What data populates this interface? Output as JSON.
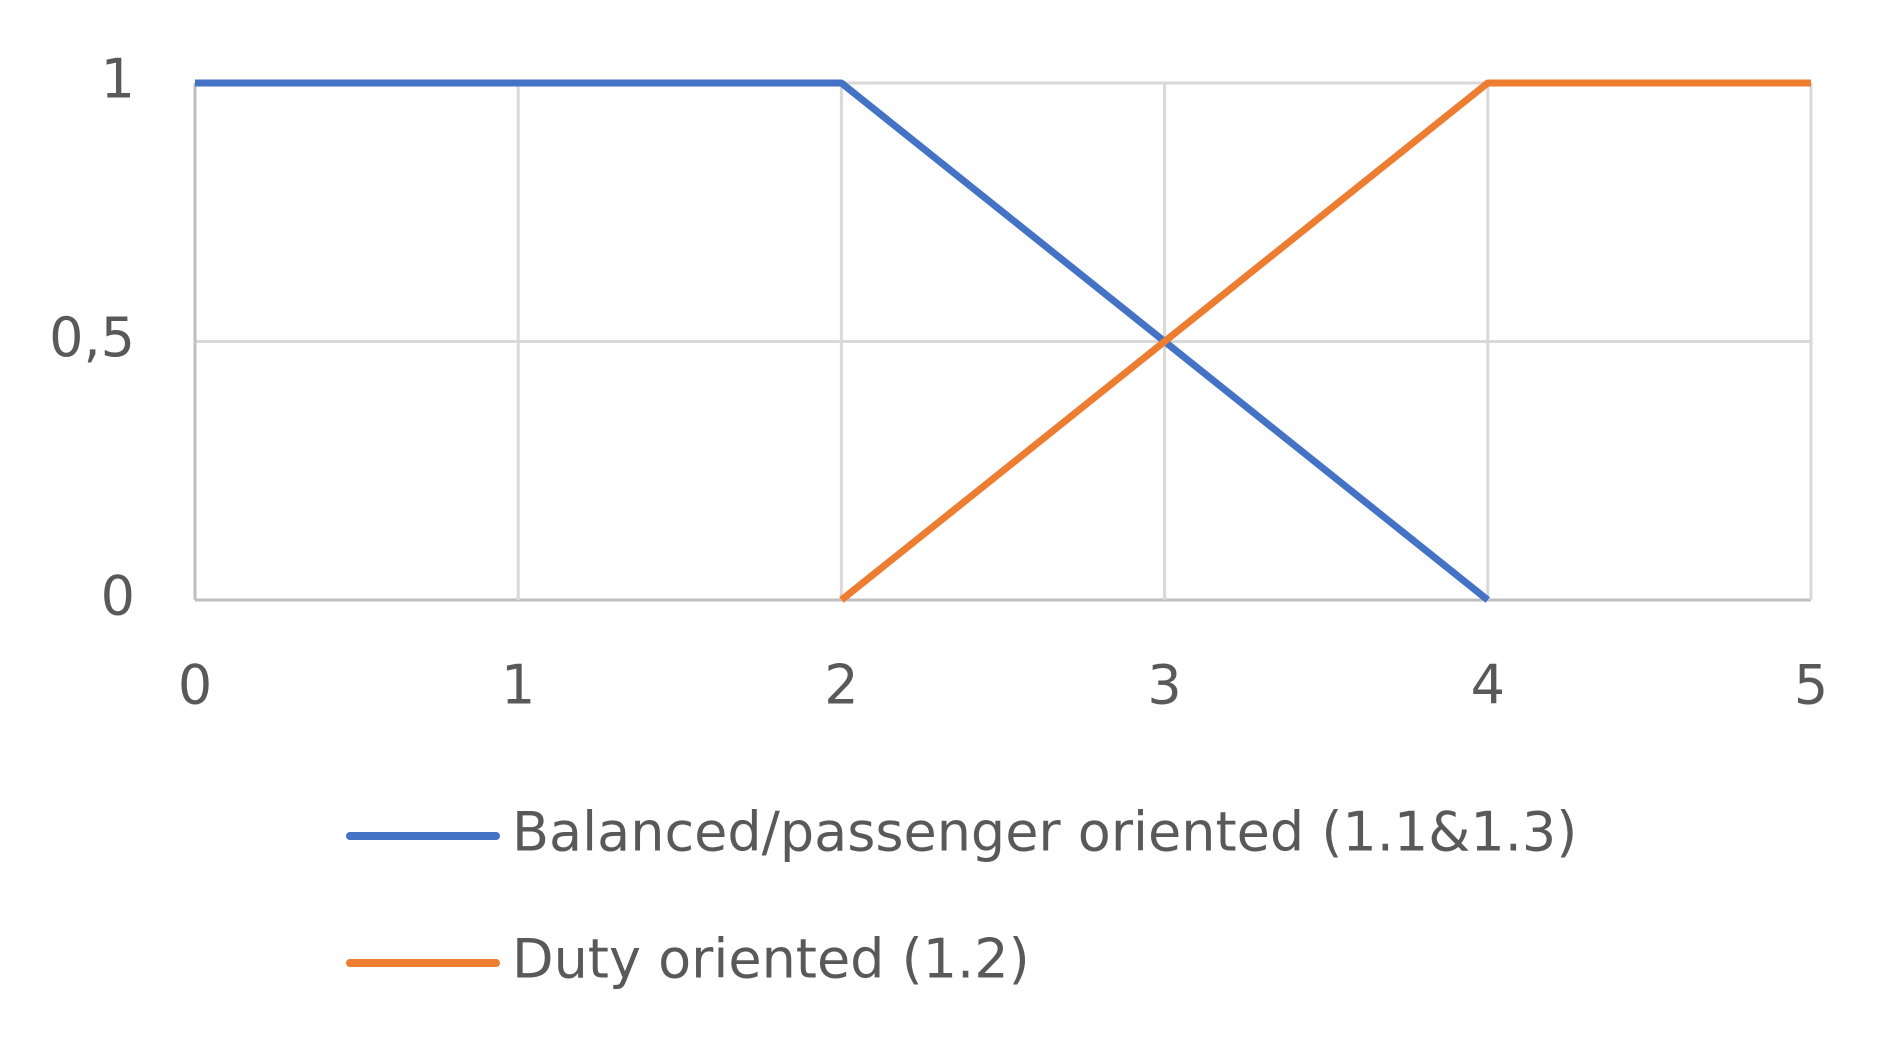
{
  "chart_data": {
    "type": "line",
    "x": [
      0,
      1,
      2,
      3,
      4,
      5
    ],
    "series": [
      {
        "name": "Balanced/passenger oriented (1.1&1.3)",
        "color": "#4472c4",
        "values": [
          1,
          1,
          1,
          0.5,
          0,
          null
        ]
      },
      {
        "name": "Duty oriented (1.2)",
        "color": "#ed7d31",
        "values": [
          null,
          null,
          0,
          0.5,
          1,
          1
        ]
      }
    ],
    "xlim": [
      0,
      5
    ],
    "xticks": [
      0,
      1,
      2,
      3,
      4,
      5
    ],
    "ylim": [
      0,
      1
    ],
    "yticks": [
      0,
      {
        "value": 0.5,
        "label": "0,5"
      },
      1
    ],
    "grid": true,
    "legend": "bottom"
  }
}
